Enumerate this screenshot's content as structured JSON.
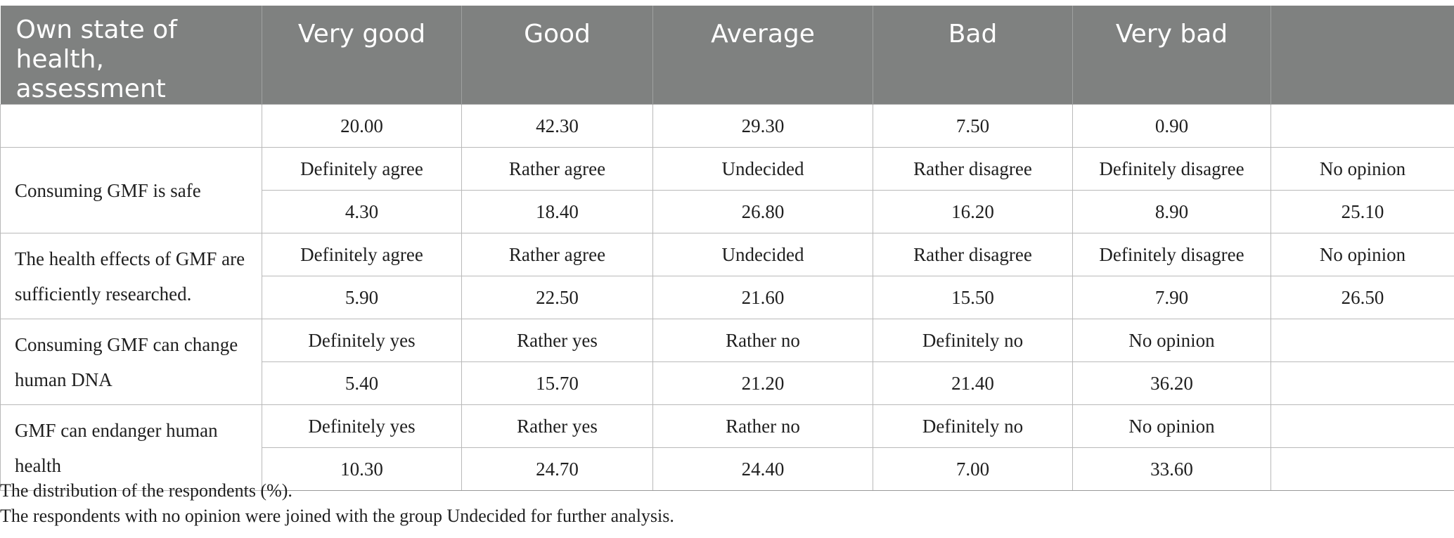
{
  "header": {
    "first": "Own state of\nhealth, assessment",
    "cols": [
      "Very good",
      "Good",
      "Average",
      "Bad",
      "Very bad",
      ""
    ]
  },
  "health_row": [
    "20.00",
    "42.30",
    "29.30",
    "7.50",
    "0.90",
    ""
  ],
  "questions": [
    {
      "label": "Consuming GMF is safe",
      "options": [
        "Definitely agree",
        "Rather agree",
        "Undecided",
        "Rather disagree",
        "Definitely disagree",
        "No opinion"
      ],
      "values": [
        "4.30",
        "18.40",
        "26.80",
        "16.20",
        "8.90",
        "25.10"
      ]
    },
    {
      "label": "The health effects of GMF are sufficiently researched.",
      "options": [
        "Definitely agree",
        "Rather agree",
        "Undecided",
        "Rather disagree",
        "Definitely disagree",
        "No opinion"
      ],
      "values": [
        "5.90",
        "22.50",
        "21.60",
        "15.50",
        "7.90",
        "26.50"
      ]
    },
    {
      "label": "Consuming GMF can change human DNA",
      "options": [
        "Definitely yes",
        "Rather yes",
        "Rather no",
        "Definitely no",
        "No opinion",
        ""
      ],
      "values": [
        "5.40",
        "15.70",
        "21.20",
        "21.40",
        "36.20",
        ""
      ]
    },
    {
      "label": "GMF can endanger human health",
      "options": [
        "Definitely yes",
        "Rather yes",
        "Rather no",
        "Definitely no",
        "No opinion",
        ""
      ],
      "values": [
        "10.30",
        "24.70",
        "24.40",
        "7.00",
        "33.60",
        ""
      ]
    }
  ],
  "notes": [
    "The distribution of the respondents (%).",
    "The respondents with no opinion were joined with the group Undecided for further analysis."
  ]
}
